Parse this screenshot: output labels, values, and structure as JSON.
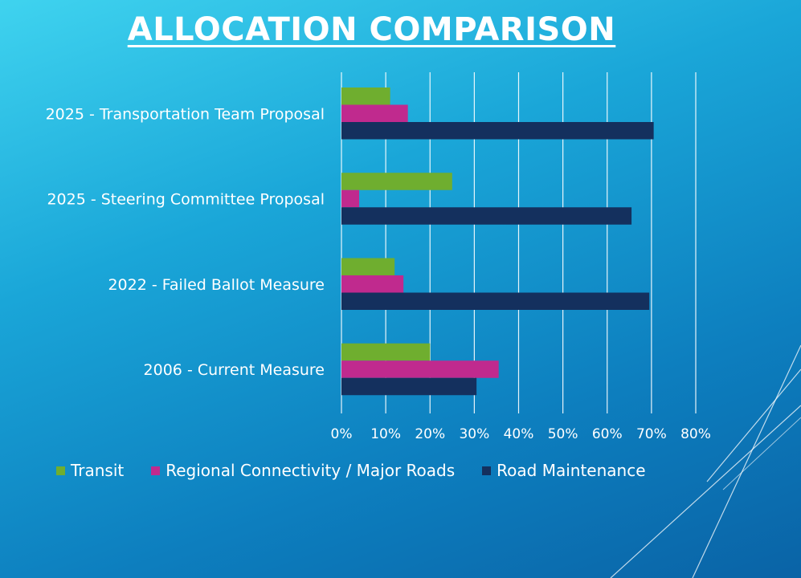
{
  "slide": {
    "title": "ALLOCATION COMPARISON"
  },
  "colors": {
    "transit": "#6fae2f",
    "regional": "#c02a8e",
    "maintenance": "#14305e",
    "grid": "#ffffff",
    "text": "#ffffff"
  },
  "chart_data": {
    "type": "bar",
    "orientation": "horizontal",
    "title": "",
    "xlabel": "",
    "ylabel": "",
    "xlim": [
      0,
      80
    ],
    "ticks": [
      "0%",
      "10%",
      "20%",
      "30%",
      "40%",
      "50%",
      "60%",
      "70%",
      "80%"
    ],
    "tick_values": [
      0,
      10,
      20,
      30,
      40,
      50,
      60,
      70,
      80
    ],
    "grid": true,
    "legend_position": "bottom",
    "categories": [
      "2025 - Transportation Team Proposal",
      "2025 - Steering Committee Proposal",
      "2022 - Failed Ballot Measure",
      "2006 - Current Measure"
    ],
    "series": [
      {
        "name": "Transit",
        "color": "#6fae2f",
        "values": [
          11,
          25,
          12,
          20
        ]
      },
      {
        "name": "Regional Connectivity / Major Roads",
        "color": "#c02a8e",
        "values": [
          15,
          4,
          14,
          35.5
        ]
      },
      {
        "name": "Road Maintenance",
        "color": "#14305e",
        "values": [
          70.5,
          65.5,
          69.5,
          30.5
        ]
      }
    ]
  }
}
